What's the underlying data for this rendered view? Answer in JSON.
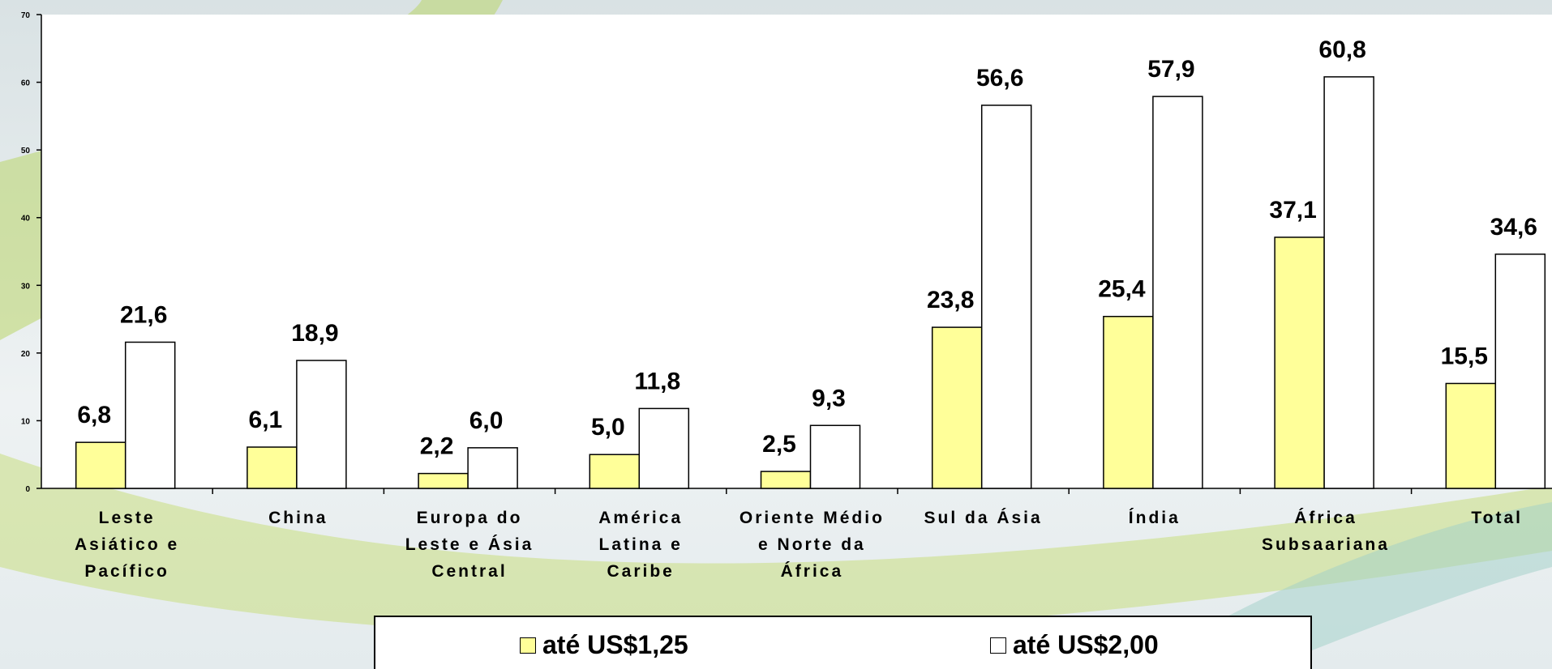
{
  "chart_data": {
    "type": "bar",
    "categories": [
      "Leste Asiático e Pacífico",
      "China",
      "Europa do Leste e Ásia Central",
      "América Latina e Caribe",
      "Oriente Médio e Norte da África",
      "Sul da Ásia",
      "Índia",
      "África Subsaariana",
      "Total"
    ],
    "series": [
      {
        "name": "até US$1,25",
        "color": "#ffff99",
        "values": [
          6.8,
          6.1,
          2.2,
          5.0,
          2.5,
          23.8,
          25.4,
          37.1,
          15.5
        ],
        "value_labels": [
          "6,8",
          "6,1",
          "2,2",
          "5,0",
          "2,5",
          "23,8",
          "25,4",
          "37,1",
          "15,5"
        ]
      },
      {
        "name": "até US$2,00",
        "color": "#ffffff",
        "values": [
          21.6,
          18.9,
          6.0,
          11.8,
          9.3,
          56.6,
          57.9,
          60.8,
          34.6
        ],
        "value_labels": [
          "21,6",
          "18,9",
          "6,0",
          "11,8",
          "9,3",
          "56,6",
          "57,9",
          "60,8",
          "34,6"
        ]
      }
    ],
    "ylim": [
      0,
      70
    ],
    "yticks": [
      0,
      10,
      20,
      30,
      40,
      50,
      60,
      70
    ]
  }
}
